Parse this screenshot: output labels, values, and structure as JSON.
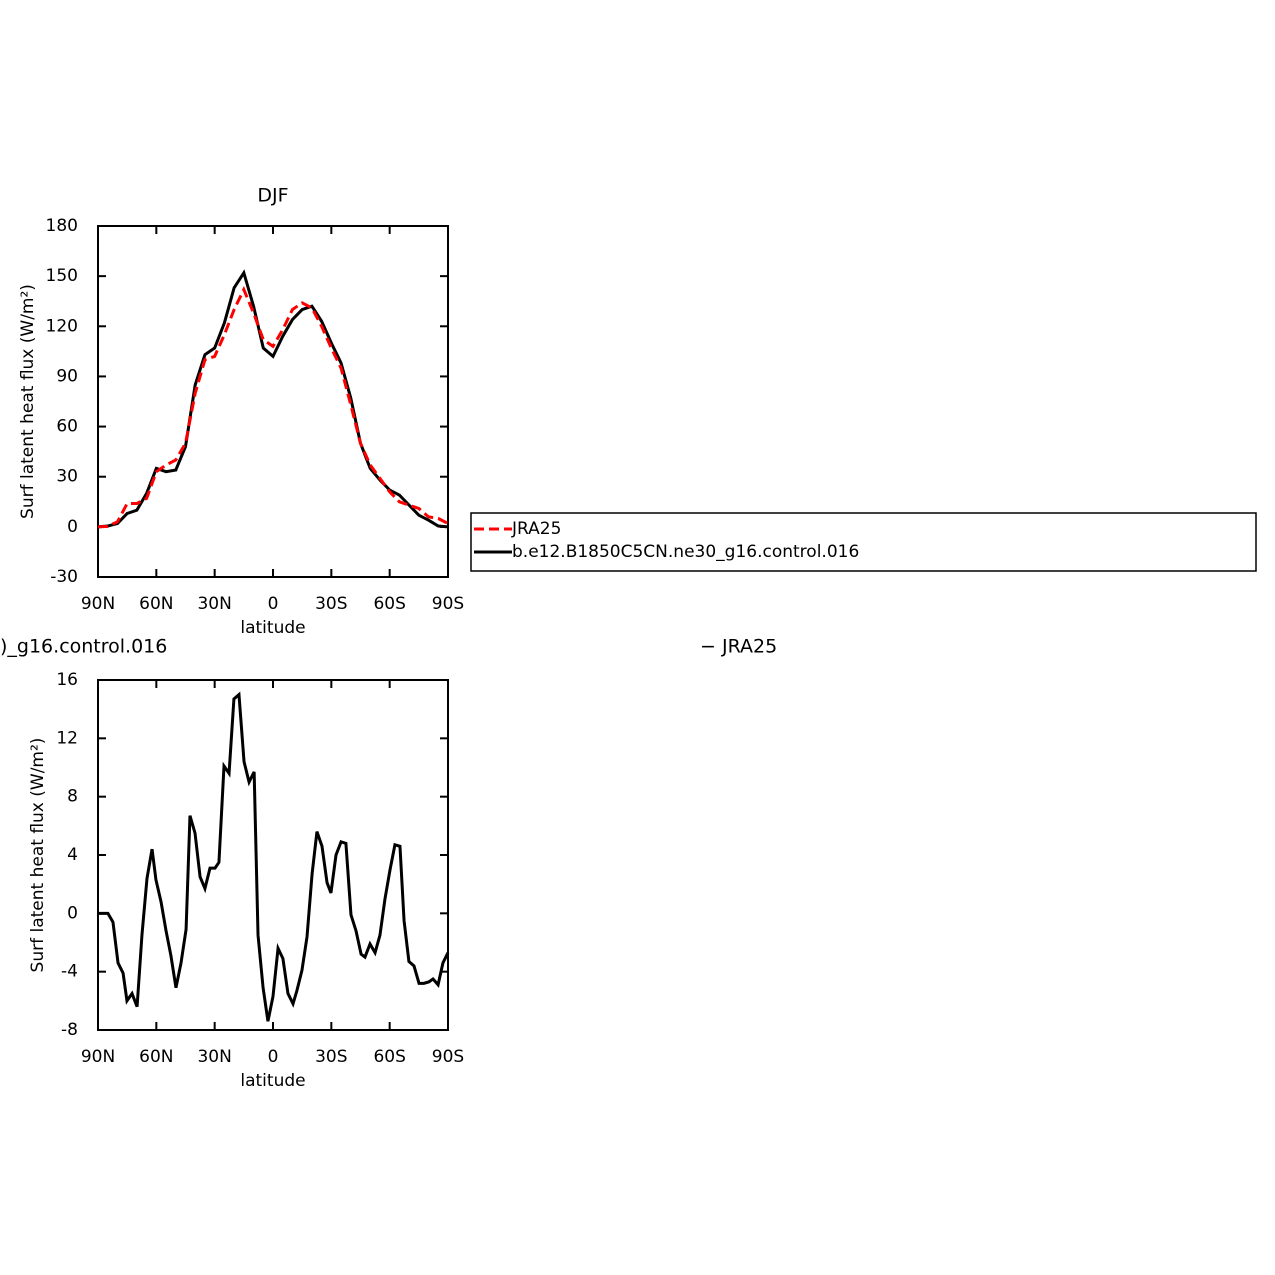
{
  "chart_data": [
    {
      "type": "line",
      "title": "DJF",
      "x_label": "latitude",
      "y_label": "Surf latent heat flux (W/m²)",
      "x": [
        90,
        85,
        80,
        75,
        70,
        65,
        60,
        55,
        50,
        45,
        40,
        35,
        30,
        25,
        20,
        15,
        10,
        5,
        0,
        -5,
        -10,
        -15,
        -20,
        -25,
        -30,
        -35,
        -40,
        -45,
        -50,
        -55,
        -60,
        -65,
        -70,
        -75,
        -80,
        -85,
        -90
      ],
      "series": [
        {
          "name": "JRA25",
          "color": "#ff0000",
          "dashed": true,
          "values": [
            0,
            0.3,
            3,
            14,
            14,
            17,
            33,
            37,
            40,
            50,
            80,
            100,
            102,
            115,
            130,
            142,
            128,
            112,
            108,
            118,
            130,
            134,
            131,
            120,
            107,
            95,
            73,
            50,
            37,
            29,
            21,
            15,
            13,
            11,
            6,
            5,
            2
          ]
        },
        {
          "name": "b.e12.B1850C5CN.ne30_g16.control.016",
          "color": "#000000",
          "dashed": false,
          "values": [
            0,
            0.5,
            2,
            8,
            10,
            20,
            35,
            33,
            34,
            48,
            85,
            103,
            107,
            122,
            143,
            152,
            132,
            107,
            102,
            114,
            124,
            130,
            132,
            123,
            110,
            98,
            77,
            50,
            35,
            28,
            22,
            19,
            13,
            7,
            4,
            0.5,
            0
          ]
        }
      ],
      "xlim": [
        90,
        -90
      ],
      "xticks": [
        {
          "value": 90,
          "label": "90N"
        },
        {
          "value": 60,
          "label": "60N"
        },
        {
          "value": 30,
          "label": "30N"
        },
        0,
        {
          "value": -30,
          "label": "30S"
        },
        {
          "value": -60,
          "label": "60S"
        },
        {
          "value": -90,
          "label": "90S"
        }
      ],
      "ylim": [
        -30,
        180
      ],
      "yticks": [
        -30,
        0,
        30,
        60,
        90,
        120,
        150,
        180
      ],
      "legend": "right"
    },
    {
      "type": "line",
      "title_parts": [
        ")_g16.control.016",
        "− JRA25"
      ],
      "x_label": "latitude",
      "y_label": "Surf latent heat flux (W/m²)",
      "x": [
        90,
        84.9,
        82.3,
        79.7,
        77.1,
        75.1,
        72.5,
        69.9,
        67.4,
        64.8,
        62.2,
        60.2,
        57.6,
        55.0,
        52.5,
        49.9,
        47.3,
        44.7,
        42.7,
        40.1,
        37.5,
        35.0,
        32.4,
        29.8,
        27.8,
        25.2,
        22.6,
        20.1,
        17.5,
        14.9,
        12.3,
        9.7,
        7.7,
        5.1,
        2.6,
        0,
        -2.6,
        -5.1,
        -7.7,
        -10.3,
        -12.3,
        -14.9,
        -17.5,
        -20.1,
        -22.6,
        -25.2,
        -27.8,
        -29.8,
        -32.4,
        -35.0,
        -37.5,
        -40.1,
        -42.7,
        -45.3,
        -47.3,
        -49.9,
        -52.5,
        -55.0,
        -57.6,
        -60.2,
        -62.7,
        -65.3,
        -67.4,
        -69.9,
        -72.5,
        -75.1,
        -77.6,
        -80.2,
        -82.3,
        -84.9,
        -87.4,
        -90
      ],
      "values": [
        0,
        0,
        -0.6,
        -3.4,
        -4.1,
        -6.0,
        -5.5,
        -6.4,
        -1.5,
        2.4,
        4.4,
        2.3,
        0.8,
        -1.2,
        -2.9,
        -5.1,
        -3.4,
        -1.1,
        6.7,
        5.5,
        2.5,
        1.7,
        3.1,
        3.1,
        3.5,
        10.1,
        9.6,
        14.7,
        15.0,
        10.4,
        9.0,
        9.7,
        -1.5,
        -5.1,
        -7.4,
        -5.7,
        -2.4,
        -3.1,
        -5.5,
        -6.2,
        -5.3,
        -3.9,
        -1.6,
        2.7,
        5.6,
        4.6,
        2.1,
        1.4,
        4.0,
        4.9,
        4.8,
        -0.1,
        -1.2,
        -2.8,
        -3.0,
        -2.1,
        -2.7,
        -1.5,
        1.0,
        3.0,
        4.7,
        4.6,
        -0.5,
        -3.3,
        -3.6,
        -4.8,
        -4.8,
        -4.7,
        -4.5,
        -4.9,
        -3.4,
        -2.7
      ],
      "color": "#000000",
      "xlim": [
        90,
        -90
      ],
      "xticks": [
        {
          "value": 90,
          "label": "90N"
        },
        {
          "value": 60,
          "label": "60N"
        },
        {
          "value": 30,
          "label": "30N"
        },
        0,
        {
          "value": -30,
          "label": "30S"
        },
        {
          "value": -60,
          "label": "60S"
        },
        {
          "value": -90,
          "label": "90S"
        }
      ],
      "ylim": [
        -8,
        16
      ],
      "yticks": [
        -8,
        -4,
        0,
        4,
        8,
        12,
        16
      ]
    }
  ]
}
